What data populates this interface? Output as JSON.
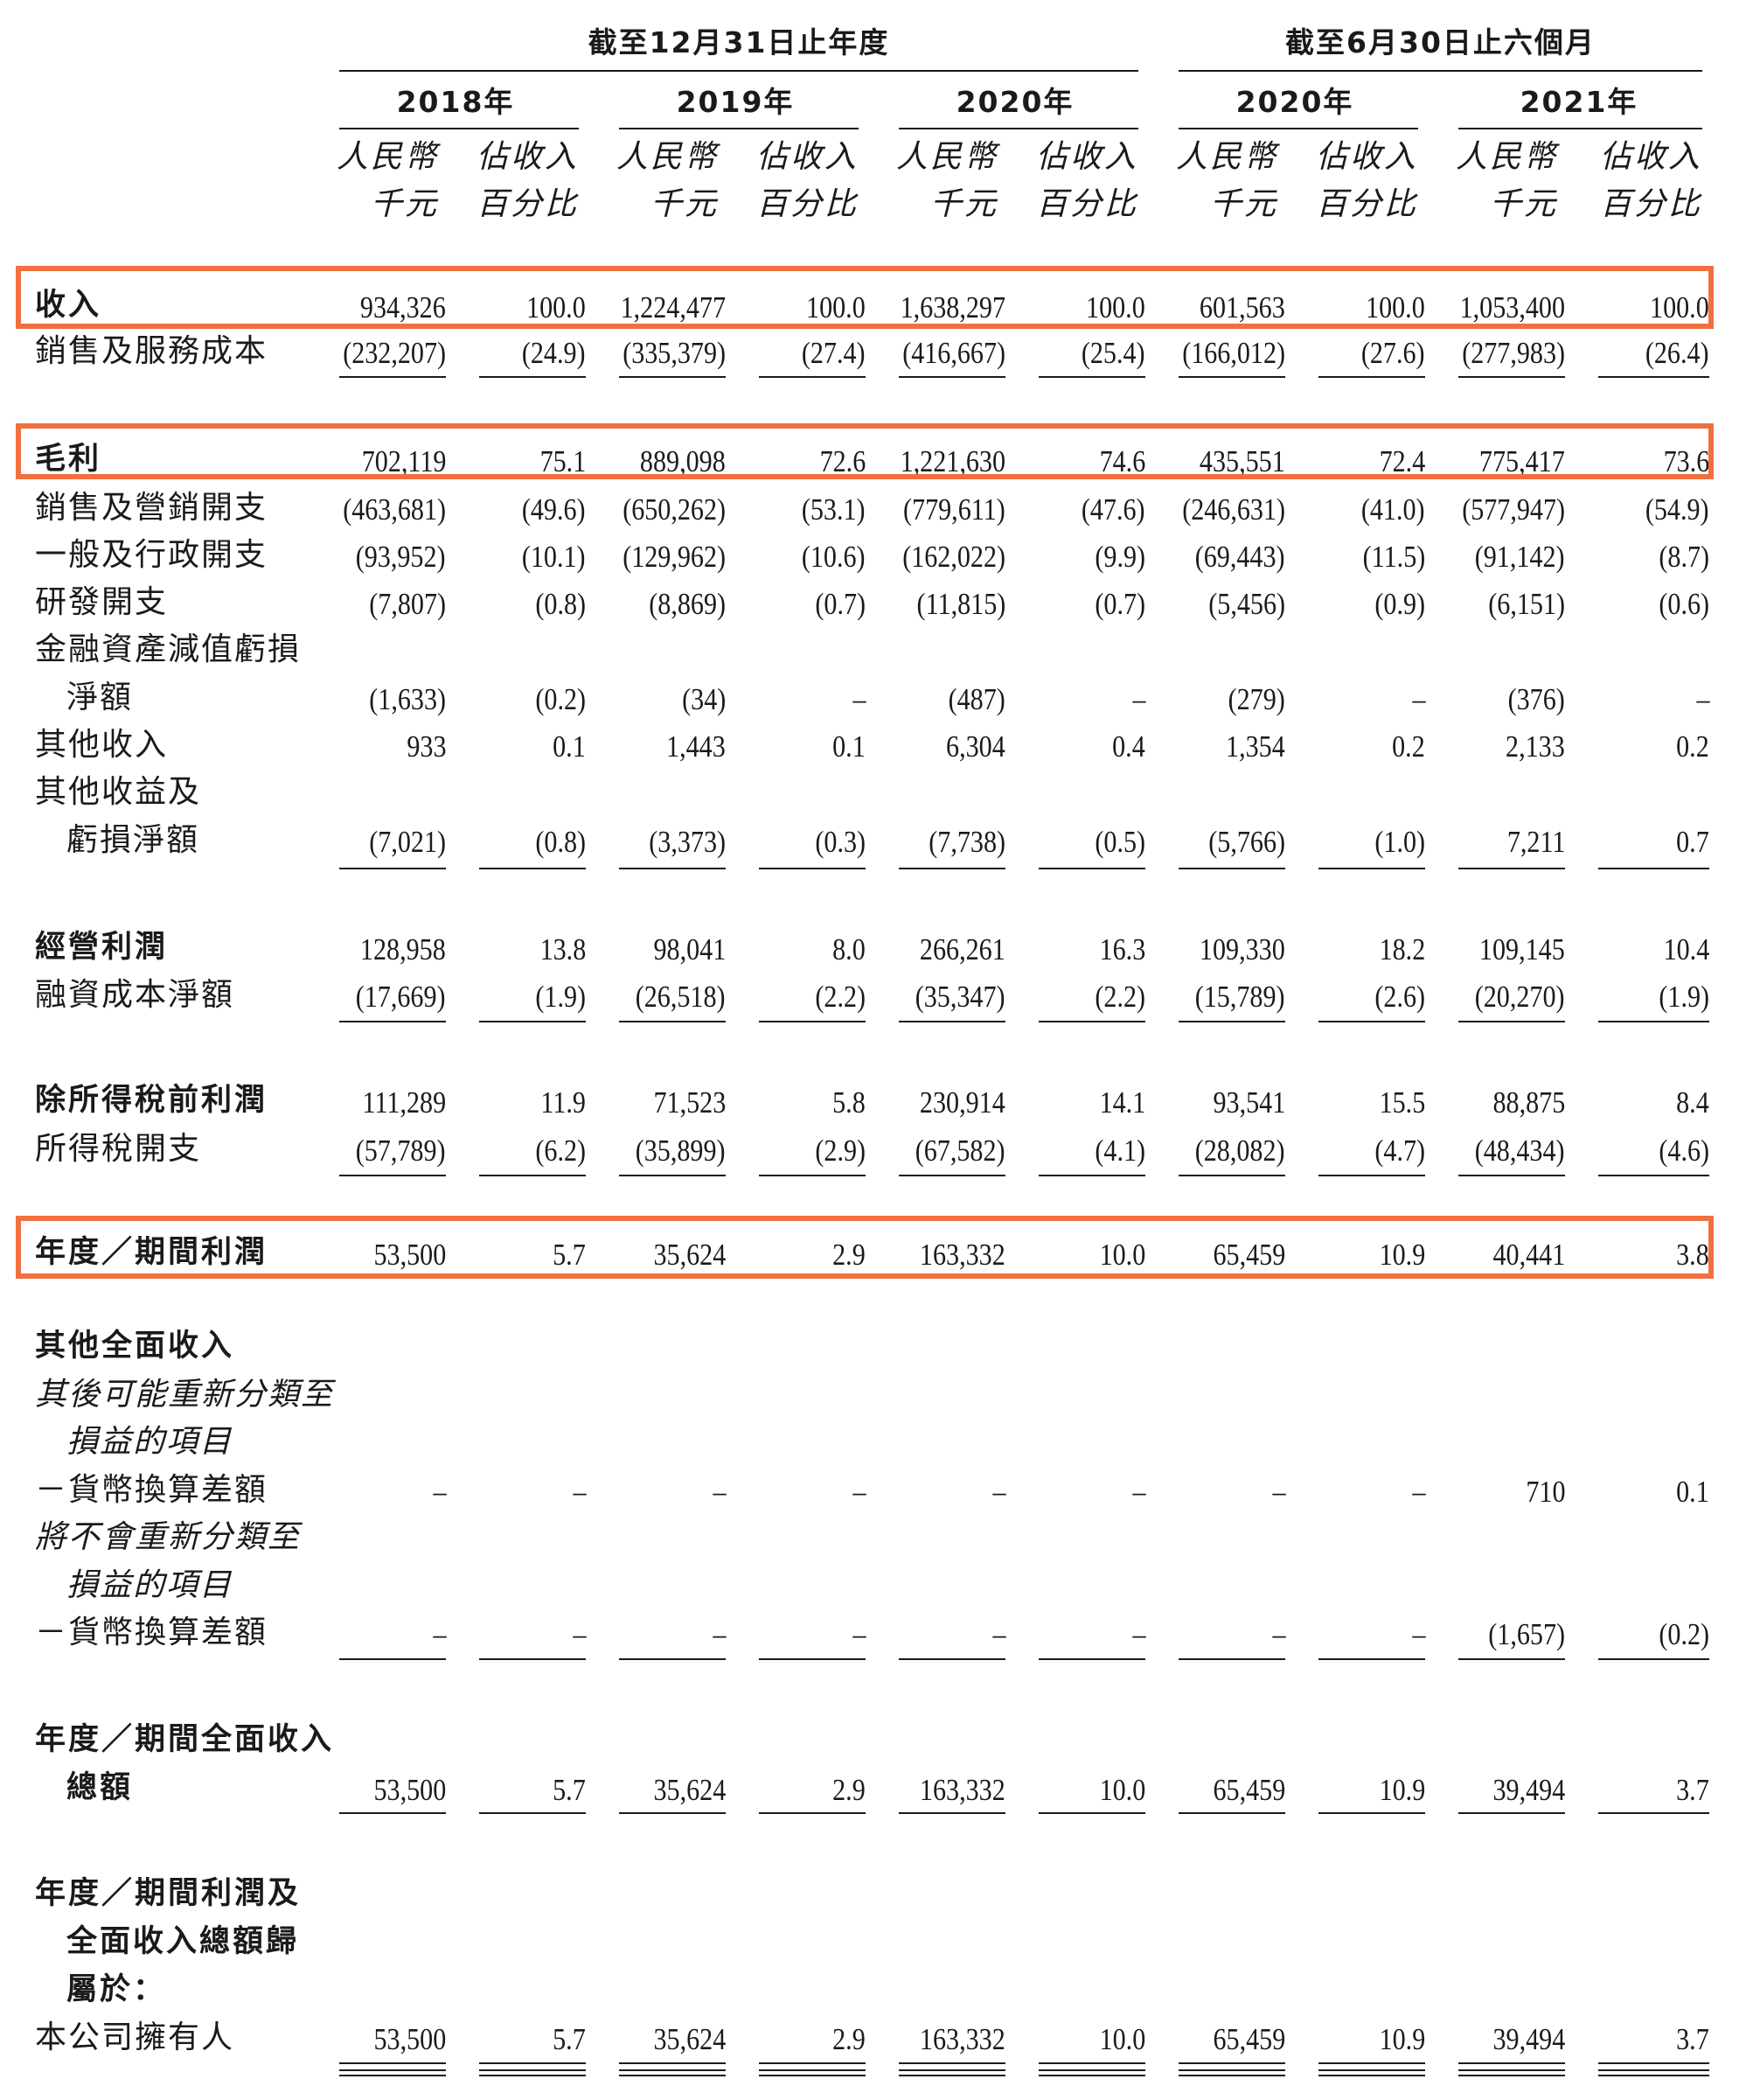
{
  "header": {
    "group1": "截至12月31日止年度",
    "group2": "截至6月30日止六個月",
    "years": [
      "2018年",
      "2019年",
      "2020年",
      "2020年",
      "2021年"
    ],
    "unit_top": "人民幣",
    "unit_bottom": "千元",
    "pct_top": "佔收入",
    "pct_bottom": "百分比"
  },
  "highlight_color": "#f07040",
  "rows": [
    {
      "label": "收入",
      "vals": [
        "934,326",
        "100.0",
        "1,224,477",
        "100.0",
        "1,638,297",
        "100.0",
        "601,563",
        "100.0",
        "1,053,400",
        "100.0"
      ]
    },
    {
      "label": "銷售及服務成本",
      "vals": [
        "(232,207)",
        "(24.9)",
        "(335,379)",
        "(27.4)",
        "(416,667)",
        "(25.4)",
        "(166,012)",
        "(27.6)",
        "(277,983)",
        "(26.4)"
      ]
    },
    {
      "label": "毛利",
      "vals": [
        "702,119",
        "75.1",
        "889,098",
        "72.6",
        "1,221,630",
        "74.6",
        "435,551",
        "72.4",
        "775,417",
        "73.6"
      ]
    },
    {
      "label": "銷售及營銷開支",
      "vals": [
        "(463,681)",
        "(49.6)",
        "(650,262)",
        "(53.1)",
        "(779,611)",
        "(47.6)",
        "(246,631)",
        "(41.0)",
        "(577,947)",
        "(54.9)"
      ]
    },
    {
      "label": "一般及行政開支",
      "vals": [
        "(93,952)",
        "(10.1)",
        "(129,962)",
        "(10.6)",
        "(162,022)",
        "(9.9)",
        "(69,443)",
        "(11.5)",
        "(91,142)",
        "(8.7)"
      ]
    },
    {
      "label": "研發開支",
      "vals": [
        "(7,807)",
        "(0.8)",
        "(8,869)",
        "(0.7)",
        "(11,815)",
        "(0.7)",
        "(5,456)",
        "(0.9)",
        "(6,151)",
        "(0.6)"
      ]
    },
    {
      "label": "金融資產減值虧損",
      "label2": "淨額",
      "vals": [
        "(1,633)",
        "(0.2)",
        "(34)",
        "–",
        "(487)",
        "–",
        "(279)",
        "–",
        "(376)",
        "–"
      ]
    },
    {
      "label": "其他收入",
      "vals": [
        "933",
        "0.1",
        "1,443",
        "0.1",
        "6,304",
        "0.4",
        "1,354",
        "0.2",
        "2,133",
        "0.2"
      ]
    },
    {
      "label": "其他收益及",
      "label2": "虧損淨額",
      "vals": [
        "(7,021)",
        "(0.8)",
        "(3,373)",
        "(0.3)",
        "(7,738)",
        "(0.5)",
        "(5,766)",
        "(1.0)",
        "7,211",
        "0.7"
      ]
    },
    {
      "label": "經營利潤",
      "vals": [
        "128,958",
        "13.8",
        "98,041",
        "8.0",
        "266,261",
        "16.3",
        "109,330",
        "18.2",
        "109,145",
        "10.4"
      ]
    },
    {
      "label": "融資成本淨額",
      "vals": [
        "(17,669)",
        "(1.9)",
        "(26,518)",
        "(2.2)",
        "(35,347)",
        "(2.2)",
        "(15,789)",
        "(2.6)",
        "(20,270)",
        "(1.9)"
      ]
    },
    {
      "label": "除所得稅前利潤",
      "vals": [
        "111,289",
        "11.9",
        "71,523",
        "5.8",
        "230,914",
        "14.1",
        "93,541",
        "15.5",
        "88,875",
        "8.4"
      ]
    },
    {
      "label": "所得稅開支",
      "vals": [
        "(57,789)",
        "(6.2)",
        "(35,899)",
        "(2.9)",
        "(67,582)",
        "(4.1)",
        "(28,082)",
        "(4.7)",
        "(48,434)",
        "(4.6)"
      ]
    },
    {
      "label": "年度／期間利潤",
      "vals": [
        "53,500",
        "5.7",
        "35,624",
        "2.9",
        "163,332",
        "10.0",
        "65,459",
        "10.9",
        "40,441",
        "3.8"
      ]
    },
    {
      "label": "其他全面收入"
    },
    {
      "label": "其後可能重新分類至",
      "label2": "損益的項目"
    },
    {
      "label": "－貨幣換算差額",
      "vals": [
        "–",
        "–",
        "–",
        "–",
        "–",
        "–",
        "–",
        "–",
        "710",
        "0.1"
      ]
    },
    {
      "label": "將不會重新分類至",
      "label2": "損益的項目"
    },
    {
      "label": "－貨幣換算差額",
      "vals": [
        "–",
        "–",
        "–",
        "–",
        "–",
        "–",
        "–",
        "–",
        "(1,657)",
        "(0.2)"
      ]
    },
    {
      "label": "年度／期間全面收入",
      "label2": "總額",
      "vals": [
        "53,500",
        "5.7",
        "35,624",
        "2.9",
        "163,332",
        "10.0",
        "65,459",
        "10.9",
        "39,494",
        "3.7"
      ]
    },
    {
      "label": "年度／期間利潤及",
      "label2": "全面收入總額歸",
      "label3": "屬於：",
      "vals": []
    },
    {
      "label": "本公司擁有人",
      "vals": [
        "53,500",
        "5.7",
        "35,624",
        "2.9",
        "163,332",
        "10.0",
        "65,459",
        "10.9",
        "39,494",
        "3.7"
      ]
    }
  ]
}
